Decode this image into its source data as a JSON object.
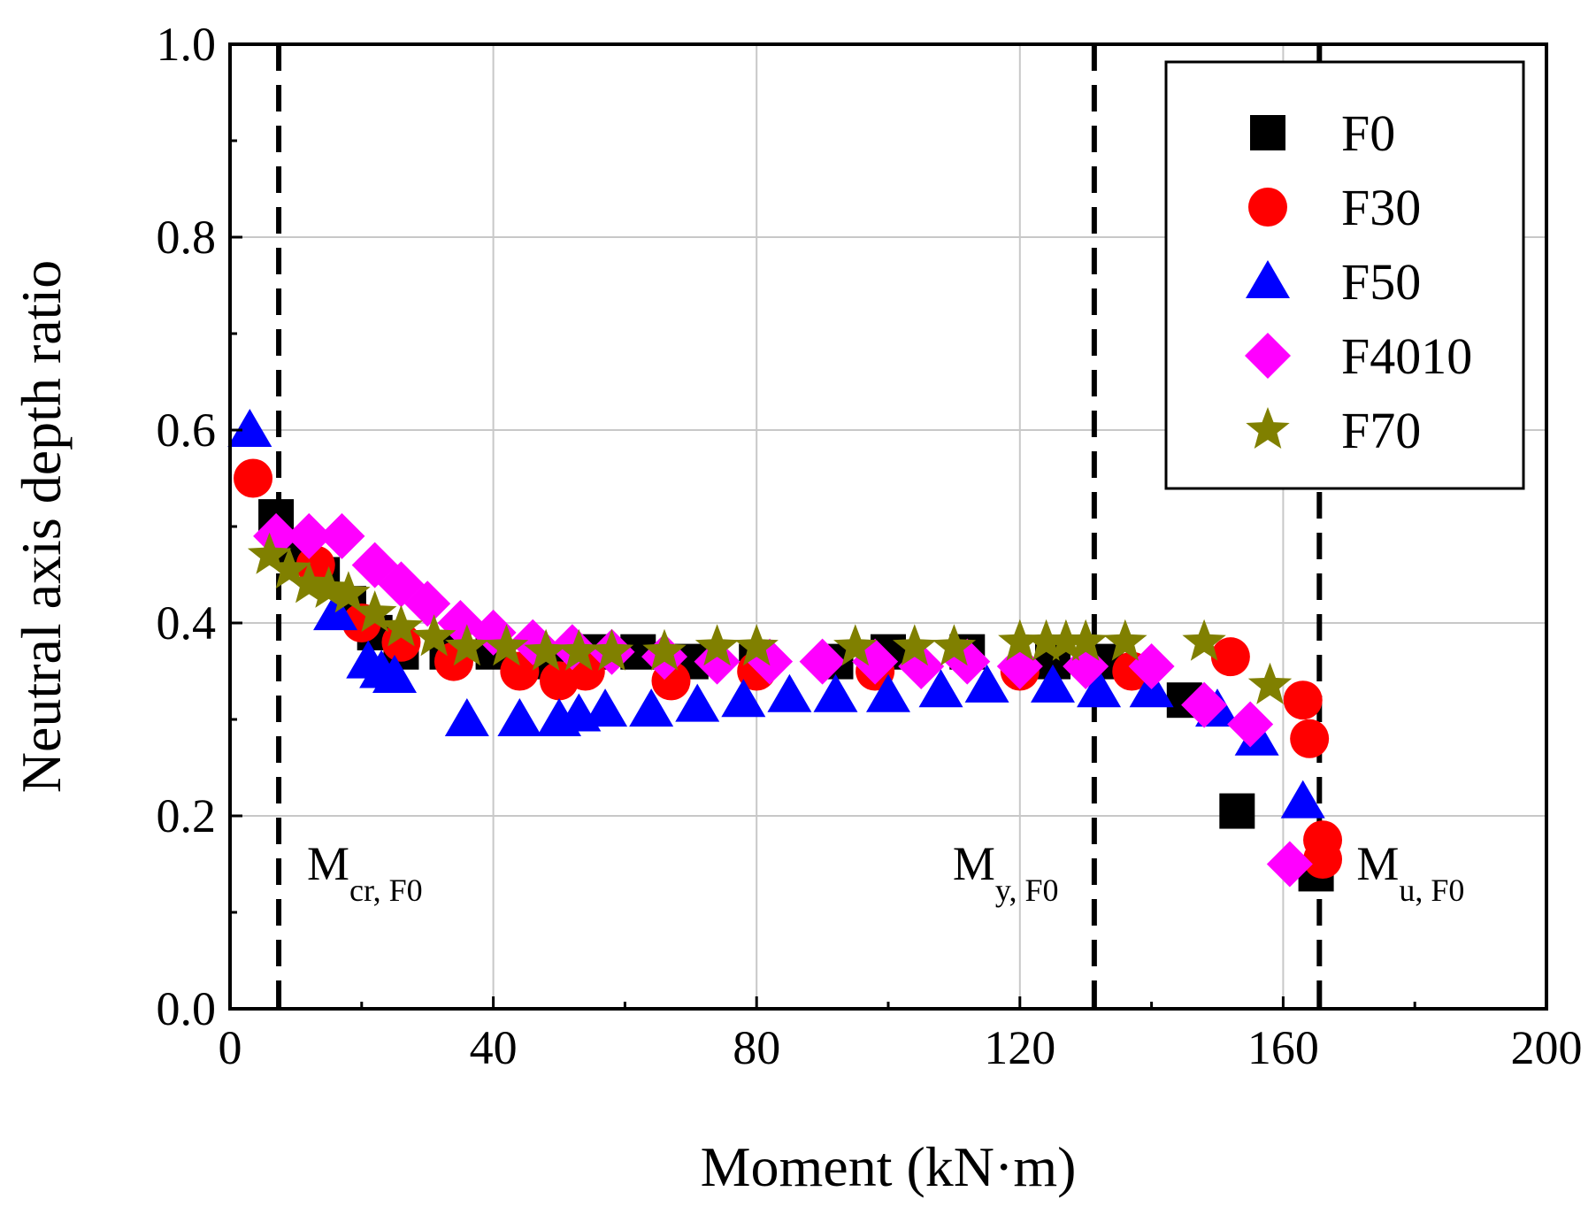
{
  "chart_data": {
    "type": "scatter",
    "xlabel": "Moment (kN·m)",
    "ylabel": "Neutral axis depth ratio",
    "xlim": [
      0,
      200
    ],
    "ylim": [
      0.0,
      1.0
    ],
    "x_ticks": [
      "0",
      "40",
      "80",
      "120",
      "160",
      "200"
    ],
    "y_ticks": [
      "0.0",
      "0.2",
      "0.4",
      "0.6",
      "0.8",
      "1.0"
    ],
    "grid": true,
    "legend_position": "top-right",
    "vertical_lines": [
      {
        "x": 7.4,
        "label_main": "M",
        "label_sub": "cr, F0"
      },
      {
        "x": 131.3,
        "label_main": "M",
        "label_sub": "y, F0"
      },
      {
        "x": 165.5,
        "label_main": "M",
        "label_sub": "u, F0"
      }
    ],
    "series": [
      {
        "name": "F0",
        "marker": "square",
        "color": "#000000",
        "points": [
          [
            7,
            0.51
          ],
          [
            10,
            0.48
          ],
          [
            14,
            0.45
          ],
          [
            18,
            0.42
          ],
          [
            22,
            0.39
          ],
          [
            26,
            0.37
          ],
          [
            33,
            0.37
          ],
          [
            40,
            0.37
          ],
          [
            48,
            0.36
          ],
          [
            55,
            0.37
          ],
          [
            62,
            0.37
          ],
          [
            70,
            0.36
          ],
          [
            80,
            0.36
          ],
          [
            92,
            0.36
          ],
          [
            100,
            0.37
          ],
          [
            112,
            0.37
          ],
          [
            125,
            0.36
          ],
          [
            133,
            0.36
          ],
          [
            145,
            0.32
          ],
          [
            153,
            0.205
          ],
          [
            165,
            0.14
          ]
        ]
      },
      {
        "name": "F30",
        "marker": "circle",
        "color": "#ff0000",
        "points": [
          [
            3.5,
            0.55
          ],
          [
            13,
            0.46
          ],
          [
            20,
            0.4
          ],
          [
            26,
            0.38
          ],
          [
            34,
            0.36
          ],
          [
            44,
            0.35
          ],
          [
            50,
            0.34
          ],
          [
            54,
            0.35
          ],
          [
            67,
            0.34
          ],
          [
            80,
            0.35
          ],
          [
            98,
            0.35
          ],
          [
            120,
            0.35
          ],
          [
            137,
            0.35
          ],
          [
            152,
            0.365
          ],
          [
            163,
            0.32
          ],
          [
            164,
            0.28
          ],
          [
            166,
            0.175
          ],
          [
            166,
            0.155
          ]
        ]
      },
      {
        "name": "F50",
        "marker": "triangle",
        "color": "#0000ff",
        "points": [
          [
            3,
            0.6
          ],
          [
            16,
            0.41
          ],
          [
            21,
            0.36
          ],
          [
            23,
            0.35
          ],
          [
            25,
            0.345
          ],
          [
            36,
            0.3
          ],
          [
            44,
            0.3
          ],
          [
            50,
            0.3
          ],
          [
            53,
            0.305
          ],
          [
            57,
            0.31
          ],
          [
            64,
            0.31
          ],
          [
            71,
            0.315
          ],
          [
            78,
            0.32
          ],
          [
            85,
            0.325
          ],
          [
            92,
            0.325
          ],
          [
            100,
            0.325
          ],
          [
            108,
            0.33
          ],
          [
            115,
            0.335
          ],
          [
            125,
            0.335
          ],
          [
            132,
            0.33
          ],
          [
            140,
            0.33
          ],
          [
            150,
            0.31
          ],
          [
            156,
            0.28
          ],
          [
            163,
            0.215
          ]
        ]
      },
      {
        "name": "F4010",
        "marker": "diamond",
        "color": "#ff00ff",
        "points": [
          [
            7,
            0.49
          ],
          [
            12,
            0.49
          ],
          [
            17,
            0.49
          ],
          [
            22,
            0.46
          ],
          [
            26,
            0.44
          ],
          [
            30,
            0.42
          ],
          [
            35,
            0.4
          ],
          [
            40,
            0.39
          ],
          [
            46,
            0.38
          ],
          [
            52,
            0.375
          ],
          [
            58,
            0.37
          ],
          [
            66,
            0.365
          ],
          [
            74,
            0.36
          ],
          [
            82,
            0.36
          ],
          [
            90,
            0.36
          ],
          [
            98,
            0.36
          ],
          [
            105,
            0.355
          ],
          [
            112,
            0.36
          ],
          [
            120,
            0.355
          ],
          [
            130,
            0.355
          ],
          [
            140,
            0.355
          ],
          [
            148,
            0.315
          ],
          [
            155,
            0.295
          ],
          [
            161,
            0.15
          ]
        ]
      },
      {
        "name": "F70",
        "marker": "star",
        "color": "#808000",
        "points": [
          [
            6,
            0.47
          ],
          [
            9,
            0.455
          ],
          [
            12,
            0.44
          ],
          [
            15,
            0.435
          ],
          [
            18,
            0.43
          ],
          [
            22,
            0.41
          ],
          [
            26,
            0.395
          ],
          [
            31,
            0.385
          ],
          [
            36,
            0.375
          ],
          [
            42,
            0.375
          ],
          [
            48,
            0.37
          ],
          [
            53,
            0.37
          ],
          [
            58,
            0.37
          ],
          [
            66,
            0.37
          ],
          [
            74,
            0.375
          ],
          [
            80,
            0.375
          ],
          [
            95,
            0.375
          ],
          [
            104,
            0.375
          ],
          [
            110,
            0.375
          ],
          [
            120,
            0.38
          ],
          [
            124,
            0.38
          ],
          [
            127,
            0.38
          ],
          [
            130,
            0.38
          ],
          [
            136,
            0.38
          ],
          [
            148,
            0.38
          ],
          [
            158,
            0.335
          ]
        ]
      }
    ]
  }
}
